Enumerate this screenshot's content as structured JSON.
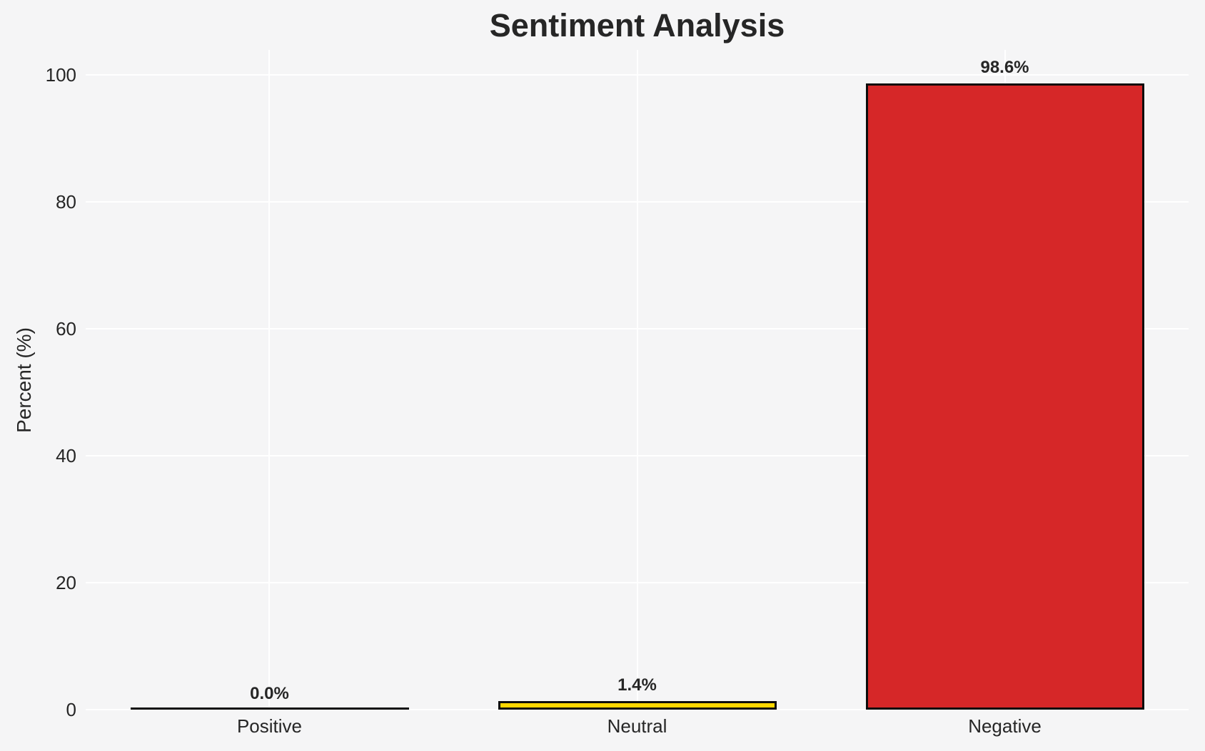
{
  "chart_data": {
    "type": "bar",
    "title": "Sentiment Analysis",
    "xlabel": "",
    "ylabel": "Percent (%)",
    "categories": [
      "Positive",
      "Neutral",
      "Negative"
    ],
    "values": [
      0.0,
      1.4,
      98.6
    ],
    "value_labels": [
      "0.0%",
      "1.4%",
      "98.6%"
    ],
    "bar_colors": [
      "",
      "#ffd700",
      "#d62728"
    ],
    "bar_edge_color": "#0d0d0d",
    "ylim": [
      0,
      104
    ],
    "yticks": [
      0,
      20,
      40,
      60,
      80,
      100
    ],
    "grid": true,
    "gridline_color": "#ffffff",
    "background_color": "#f5f5f6",
    "text_color": "#262626",
    "legend": "none"
  }
}
